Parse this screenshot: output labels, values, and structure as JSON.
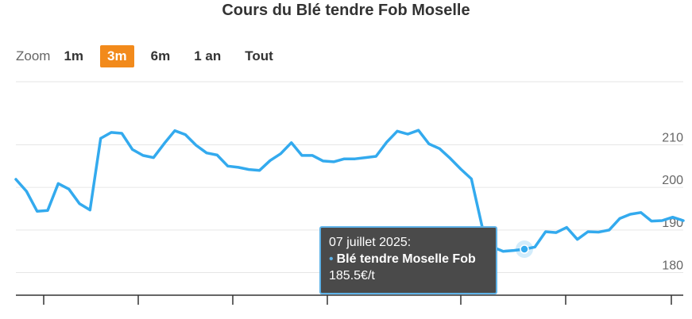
{
  "title": "Cours du Blé tendre Fob Moselle",
  "zoom": {
    "label": "Zoom",
    "buttons": [
      "1m",
      "3m",
      "6m",
      "1 an",
      "Tout"
    ],
    "selected": "3m"
  },
  "tooltip": {
    "date": "07 juillet 2025:",
    "series_name": "Blé tendre Moselle Fob",
    "value": "185.5€/t"
  },
  "chart_data": {
    "type": "line",
    "title": "Cours du Blé tendre Fob Moselle",
    "xlabel": "",
    "ylabel": "",
    "ylim": [
      174.7,
      224.8
    ],
    "yticks": [
      180,
      190,
      200,
      210
    ],
    "grid": true,
    "legend": "none",
    "line_color": "#33aaee",
    "series": [
      {
        "name": "Blé tendre Moselle Fob",
        "values": [
          201.9,
          199.1,
          194.4,
          194.6,
          200.9,
          199.6,
          196.2,
          194.7,
          211.5,
          212.9,
          212.7,
          208.9,
          207.5,
          207.0,
          210.3,
          213.3,
          212.4,
          209.9,
          208.1,
          207.6,
          205.0,
          204.7,
          204.2,
          204.0,
          206.3,
          207.9,
          210.5,
          207.5,
          207.5,
          206.2,
          206.0,
          206.7,
          206.7,
          207.0,
          207.3,
          210.6,
          213.2,
          212.5,
          213.4,
          210.2,
          209.1,
          206.8,
          204.3,
          202.0,
          190.9,
          186.0,
          185.0,
          185.2,
          185.5,
          186.0,
          189.6,
          189.4,
          190.6,
          187.8,
          189.6,
          189.5,
          190.0,
          192.7,
          193.7,
          194.1,
          192.1,
          192.2,
          193.0,
          192.2
        ]
      }
    ],
    "highlight": {
      "index": 48,
      "value": 185.5
    }
  }
}
